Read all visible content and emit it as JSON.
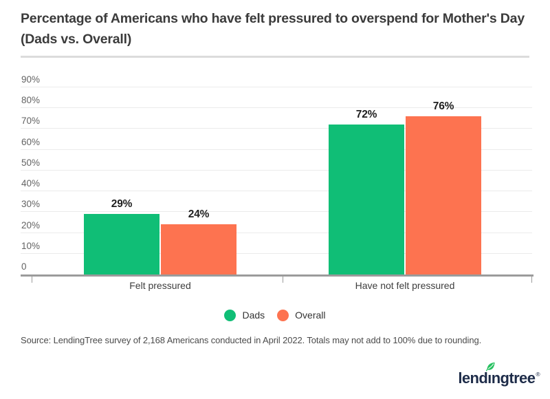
{
  "header": {
    "title_line1": "Percentage of Americans who have felt pressured to overspend for Mother's Day",
    "title_line2": "(Dads vs. Overall)"
  },
  "chart_data": {
    "type": "bar",
    "title": "Percentage of Americans who have felt pressured to overspend for Mother's Day (Dads vs. Overall)",
    "categories": [
      "Felt pressured",
      "Have not felt pressured"
    ],
    "series": [
      {
        "name": "Dads",
        "color": "#10be76",
        "values": [
          29,
          72
        ]
      },
      {
        "name": "Overall",
        "color": "#fd7350",
        "values": [
          24,
          76
        ]
      }
    ],
    "value_suffix": "%",
    "ylim": [
      0,
      90
    ],
    "ytick_step": 10,
    "ytick_labels": [
      "0",
      "10%",
      "20%",
      "30%",
      "40%",
      "50%",
      "60%",
      "70%",
      "80%",
      "90%"
    ],
    "grid": true,
    "legend_position": "bottom",
    "xlabel": "",
    "ylabel": ""
  },
  "footer": {
    "source": "Source: LendingTree survey of 2,168 Americans conducted in April 2022. Totals may not add to 100% due to rounding."
  },
  "branding": {
    "logo_pre": "lend",
    "logo_i": "ı",
    "logo_post": "ngtree",
    "registered_mark": "®",
    "logo_color": "#1e2c49",
    "leaf_color": "#27c160"
  }
}
